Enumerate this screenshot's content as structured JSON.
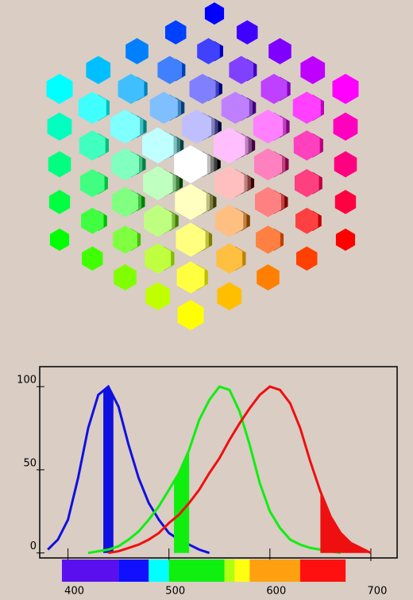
{
  "chart_data": {
    "type": "line",
    "x": [
      380,
      390,
      400,
      410,
      420,
      430,
      440,
      450,
      460,
      470,
      480,
      490,
      500,
      510,
      520,
      530,
      540,
      550,
      560,
      570,
      580,
      590,
      600,
      610,
      620,
      630,
      640,
      650,
      660,
      670,
      680,
      690,
      700,
      710,
      720
    ],
    "series": [
      {
        "color": "#1010e0",
        "fill_range": [
          435,
          445
        ],
        "values": [
          2,
          8,
          20,
          45,
          75,
          95,
          100,
          88,
          65,
          45,
          30,
          20,
          12,
          8,
          5,
          2,
          0,
          null,
          null,
          null,
          null,
          null,
          null,
          null,
          null,
          null,
          null,
          null,
          null,
          null,
          null,
          null,
          null,
          null,
          null
        ]
      },
      {
        "color": "#10ee10",
        "fill_range": [
          505,
          520
        ],
        "values": [
          null,
          null,
          null,
          null,
          0,
          1,
          2,
          4,
          8,
          13,
          20,
          28,
          38,
          48,
          62,
          80,
          92,
          100,
          98,
          85,
          65,
          42,
          25,
          15,
          8,
          5,
          3,
          2,
          1,
          0,
          null,
          null,
          null,
          null,
          null
        ]
      },
      {
        "color": "#ee1010",
        "fill_range": [
          650,
          700
        ],
        "values": [
          null,
          null,
          null,
          null,
          null,
          null,
          0,
          1,
          3,
          5,
          8,
          12,
          18,
          23,
          30,
          38,
          48,
          57,
          68,
          78,
          87,
          95,
          100,
          98,
          90,
          75,
          55,
          37,
          22,
          12,
          6,
          3,
          0,
          null,
          null
        ]
      }
    ],
    "xlim": [
      372,
      726
    ],
    "ylim": [
      -3,
      112
    ],
    "xticks": [
      400,
      500,
      600,
      700
    ],
    "yticks": [
      0,
      50,
      100
    ],
    "spectrum": [
      {
        "from": 394,
        "to": 450,
        "color": "#5a10ee"
      },
      {
        "from": 450,
        "to": 480,
        "color": "#1010ff"
      },
      {
        "from": 480,
        "to": 500,
        "color": "#00ffff"
      },
      {
        "from": 500,
        "to": 555,
        "color": "#10f010"
      },
      {
        "from": 555,
        "to": 565,
        "color": "#b0ff10"
      },
      {
        "from": 565,
        "to": 580,
        "color": "#ffff10"
      },
      {
        "from": 580,
        "to": 630,
        "color": "#ffa010"
      },
      {
        "from": 630,
        "to": 675,
        "color": "#ff1010"
      }
    ]
  }
}
